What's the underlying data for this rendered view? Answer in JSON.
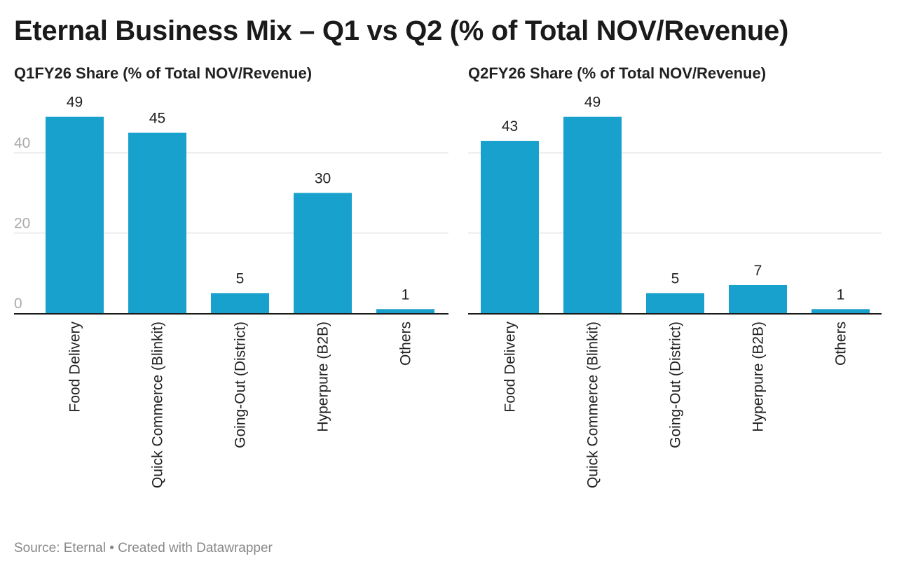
{
  "title": "Eternal Business Mix – Q1 vs Q2 (% of Total NOV/Revenue)",
  "footer": "Source: Eternal • Created with Datawrapper",
  "colors": {
    "bar": "#18a1cd",
    "grid": "#e5e5e5",
    "axis": "#1a1a1a",
    "tick": "#aaaaaa"
  },
  "chart_data": [
    {
      "type": "bar",
      "title": "Q1FY26 Share (% of Total NOV/Revenue)",
      "categories": [
        "Food Delivery",
        "Quick Commerce (Blinkit)",
        "Going-Out (District)",
        "Hyperpure (B2B)",
        "Others"
      ],
      "values": [
        49,
        45,
        5,
        30,
        1
      ],
      "yticks": [
        "0",
        "20",
        "40"
      ],
      "ylim": [
        0,
        50
      ],
      "grid": true,
      "show_y_labels": true
    },
    {
      "type": "bar",
      "title": "Q2FY26 Share (% of Total NOV/Revenue)",
      "categories": [
        "Food Delivery",
        "Quick Commerce (Blinkit)",
        "Going-Out (District)",
        "Hyperpure (B2B)",
        "Others"
      ],
      "values": [
        43,
        49,
        5,
        7,
        1
      ],
      "yticks": [
        "0",
        "20",
        "40"
      ],
      "ylim": [
        0,
        50
      ],
      "grid": true,
      "show_y_labels": false
    }
  ]
}
